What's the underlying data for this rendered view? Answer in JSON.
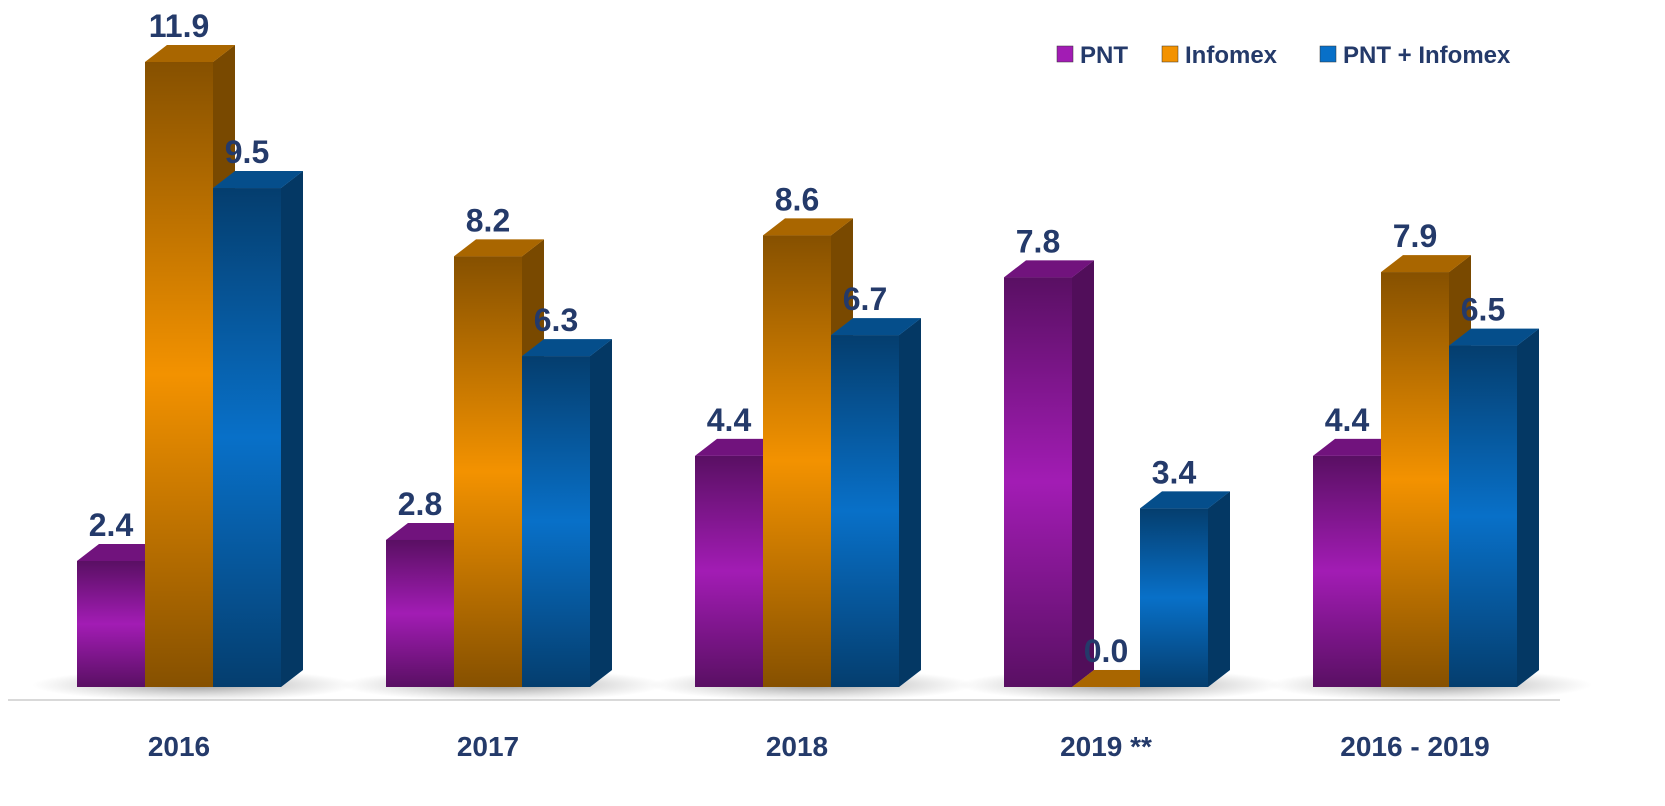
{
  "chart_data": {
    "type": "bar3d",
    "categories": [
      "2016",
      "2017",
      "2018",
      "2019 **",
      "2016 - 2019"
    ],
    "series": [
      {
        "name": "PNT",
        "color": "#a21cb4",
        "values": [
          2.4,
          2.8,
          4.4,
          7.8,
          4.4
        ],
        "value_labels": [
          "2.4",
          "2.8",
          "4.4",
          "7.8",
          "4.4"
        ]
      },
      {
        "name": "Infomex",
        "color": "#f39200",
        "values": [
          11.9,
          8.2,
          8.6,
          0.0,
          7.9
        ],
        "value_labels": [
          "11.9",
          "8.2",
          "8.6",
          "0.0",
          "7.9"
        ]
      },
      {
        "name": "PNT + Infomex",
        "color": "#0870c8",
        "values": [
          9.5,
          6.3,
          6.7,
          3.4,
          6.5
        ],
        "value_labels": [
          "9.5",
          "6.3",
          "6.7",
          "3.4",
          "6.5"
        ]
      }
    ],
    "legend": "top-right"
  }
}
